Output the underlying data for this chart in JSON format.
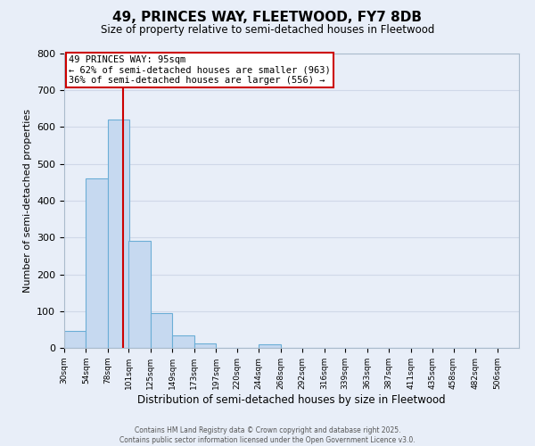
{
  "title": "49, PRINCES WAY, FLEETWOOD, FY7 8DB",
  "subtitle": "Size of property relative to semi-detached houses in Fleetwood",
  "xlabel": "Distribution of semi-detached houses by size in Fleetwood",
  "ylabel": "Number of semi-detached properties",
  "bin_labels": [
    "30sqm",
    "54sqm",
    "78sqm",
    "101sqm",
    "125sqm",
    "149sqm",
    "173sqm",
    "197sqm",
    "220sqm",
    "244sqm",
    "268sqm",
    "292sqm",
    "316sqm",
    "339sqm",
    "363sqm",
    "387sqm",
    "411sqm",
    "435sqm",
    "458sqm",
    "482sqm",
    "506sqm"
  ],
  "bar_heights": [
    45,
    460,
    620,
    290,
    95,
    35,
    13,
    0,
    0,
    10,
    0,
    0,
    0,
    0,
    0,
    0,
    0,
    0,
    0,
    0
  ],
  "bar_color": "#c6d9f0",
  "bar_edge_color": "#6baed6",
  "grid_color": "#d0d8e8",
  "background_color": "#e8eef8",
  "property_line_x": 95,
  "bin_edges": [
    30,
    54,
    78,
    101,
    125,
    149,
    173,
    197,
    220,
    244,
    268,
    292,
    316,
    339,
    363,
    387,
    411,
    435,
    458,
    482,
    506
  ],
  "annotation_title": "49 PRINCES WAY: 95sqm",
  "annotation_line1": "← 62% of semi-detached houses are smaller (963)",
  "annotation_line2": "36% of semi-detached houses are larger (556) →",
  "annotation_box_color": "#ffffff",
  "annotation_box_edge": "#cc0000",
  "red_line_color": "#cc0000",
  "ylim": [
    0,
    800
  ],
  "yticks": [
    0,
    100,
    200,
    300,
    400,
    500,
    600,
    700,
    800
  ],
  "footer1": "Contains HM Land Registry data © Crown copyright and database right 2025.",
  "footer2": "Contains public sector information licensed under the Open Government Licence v3.0."
}
